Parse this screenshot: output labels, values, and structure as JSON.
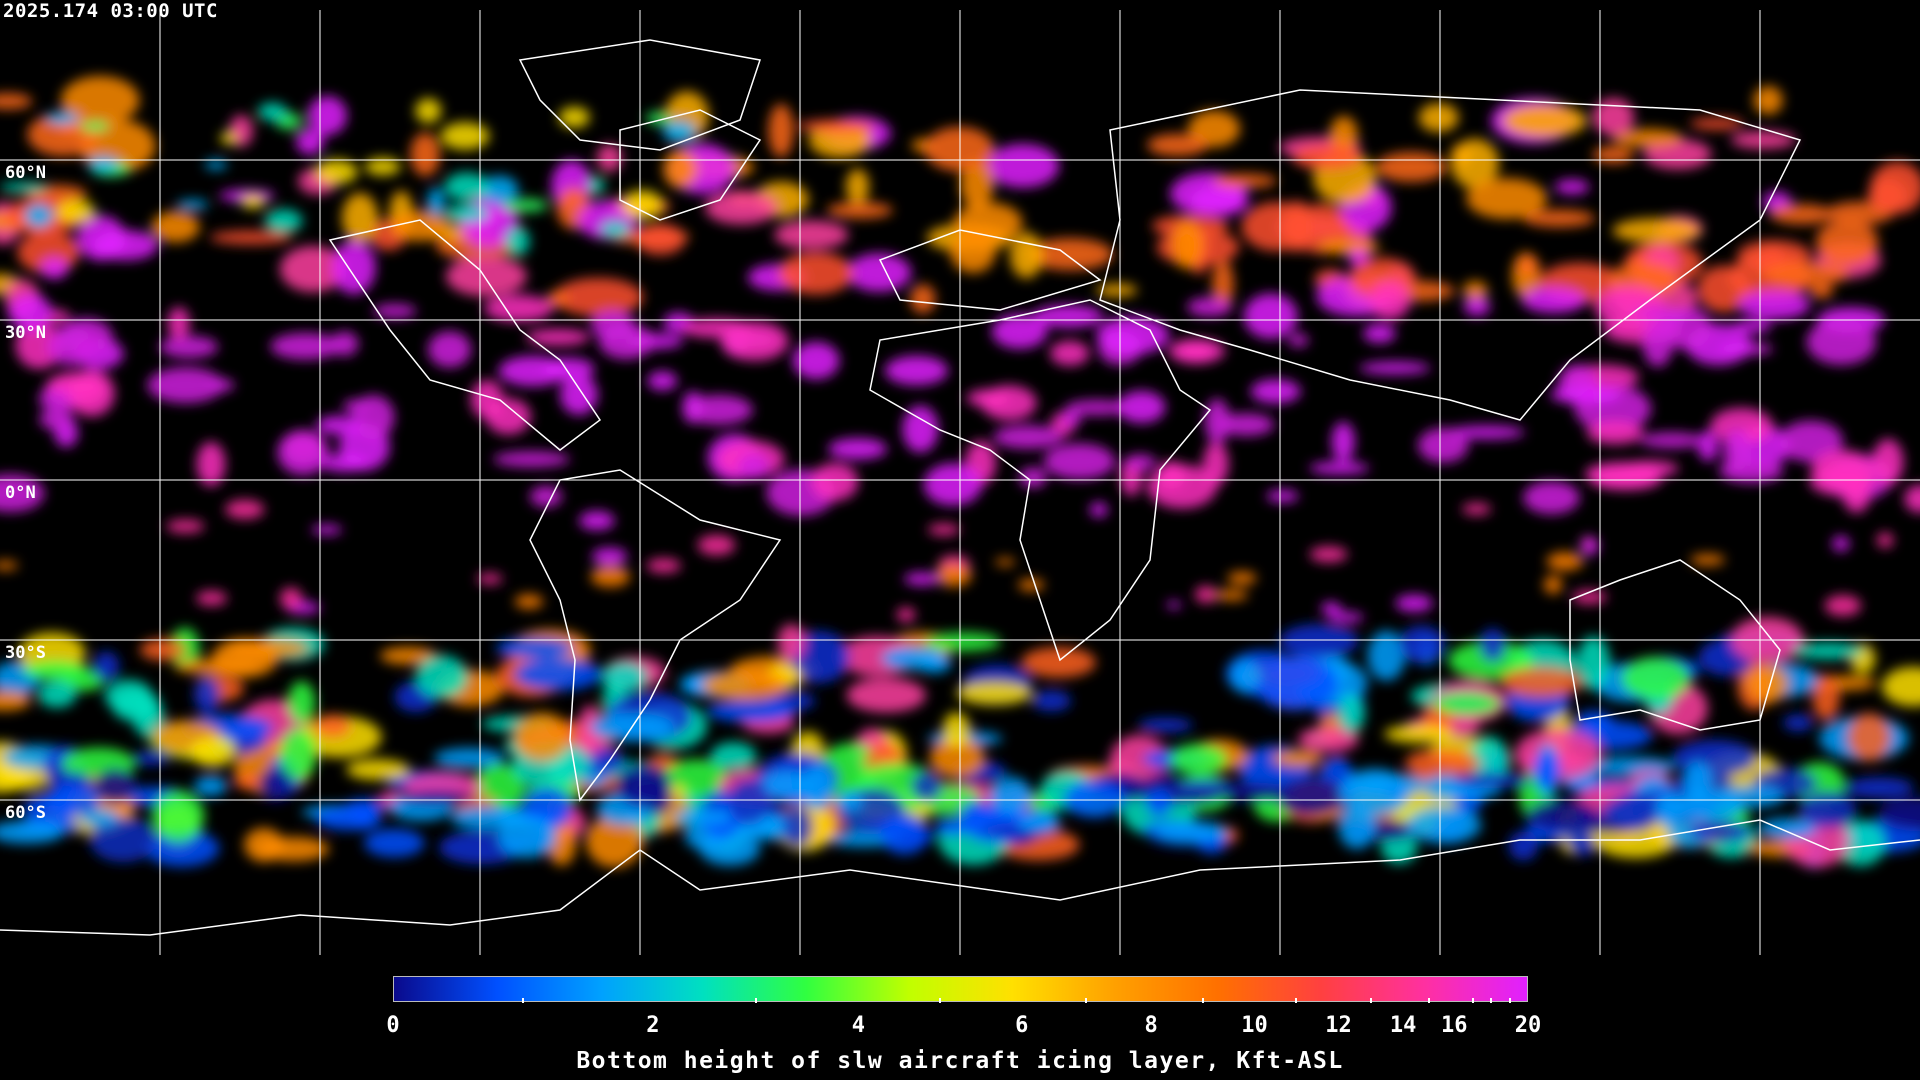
{
  "header": {
    "timestamp": "2025.174 03:00 UTC"
  },
  "map": {
    "projection": "equirectangular",
    "graticule_spacing_deg": 30,
    "lat_labels": [
      "60°N",
      "30°N",
      "0°N",
      "30°S",
      "60°S"
    ],
    "grid_color": "#ffffff",
    "coastline_color": "#ffffff",
    "background": "#000000"
  },
  "colorbar": {
    "title": "Bottom height of slw aircraft icing layer, Kft-ASL",
    "min": 0,
    "max": 20,
    "tick_labels": [
      "0",
      "2",
      "4",
      "6",
      "8",
      "10",
      "12",
      "14",
      "16",
      "20"
    ],
    "colors": [
      "#0a0a8c",
      "#0050ff",
      "#00a0ff",
      "#00e0c0",
      "#30ff40",
      "#c0ff00",
      "#ffe000",
      "#ffa000",
      "#ff7000",
      "#ff4040",
      "#ff30a0",
      "#e020ff"
    ]
  }
}
